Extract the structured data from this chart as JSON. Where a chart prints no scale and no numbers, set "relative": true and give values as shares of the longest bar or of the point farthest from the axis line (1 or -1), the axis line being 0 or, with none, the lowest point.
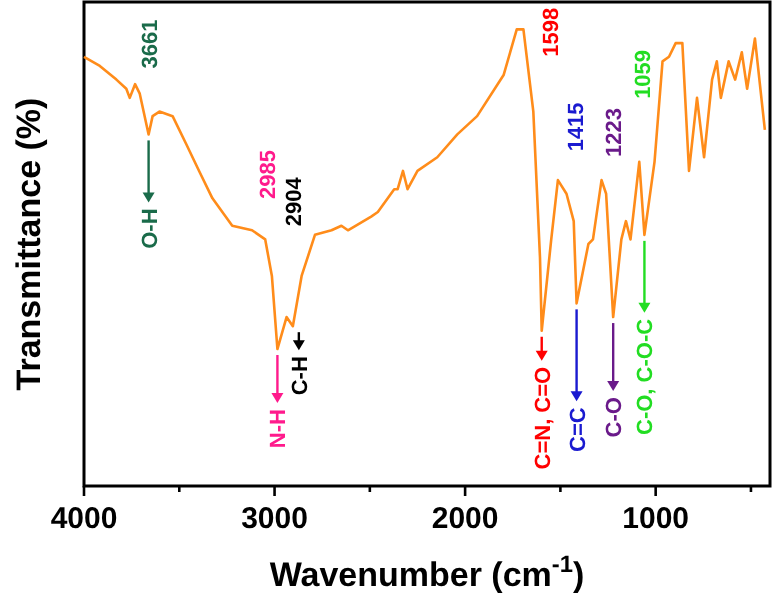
{
  "chart_data": {
    "type": "line",
    "xlabel": "Wavenumber (cm$^{-1}$)",
    "ylabel": "Transmittance (%)",
    "relative": true,
    "xlim": [
      4000,
      400
    ],
    "xticks": [
      4000,
      {
        "value": 3500,
        "label": null
      },
      3000,
      {
        "value": 2500,
        "label": null
      },
      2000,
      {
        "value": 1500,
        "label": null
      },
      1000,
      {
        "value": 500,
        "label": null
      }
    ],
    "marker": "none",
    "grid": false,
    "series": [
      {
        "color": "#ff8c1a",
        "x": [
          4000,
          3917,
          3830,
          3778,
          3760,
          3732,
          3708,
          3661,
          3640,
          3604,
          3535,
          3465,
          3396,
          3326,
          3222,
          3118,
          3049,
          3014,
          2985,
          2937,
          2904,
          2858,
          2788,
          2701,
          2649,
          2615,
          2493,
          2458,
          2372,
          2354,
          2326,
          2302,
          2250,
          2146,
          2041,
          1937,
          1798,
          1729,
          1694,
          1642,
          1607,
          1598,
          1548,
          1513,
          1468,
          1430,
          1415,
          1353,
          1329,
          1284,
          1260,
          1242,
          1223,
          1180,
          1156,
          1132,
          1086,
          1059,
          1006,
          964,
          930,
          895,
          860,
          825,
          783,
          746,
          704,
          679,
          658,
          617,
          583,
          548,
          520,
          479,
          427
        ],
        "values": [
          0.94,
          0.92,
          0.89,
          0.87,
          0.85,
          0.88,
          0.86,
          0.77,
          0.81,
          0.82,
          0.81,
          0.75,
          0.69,
          0.63,
          0.57,
          0.56,
          0.54,
          0.46,
          0.3,
          0.37,
          0.35,
          0.46,
          0.55,
          0.56,
          0.57,
          0.56,
          0.59,
          0.6,
          0.65,
          0.65,
          0.69,
          0.65,
          0.69,
          0.72,
          0.77,
          0.81,
          0.9,
          1.0,
          1.0,
          0.82,
          0.5,
          0.34,
          0.54,
          0.67,
          0.64,
          0.58,
          0.4,
          0.53,
          0.54,
          0.67,
          0.64,
          0.51,
          0.37,
          0.54,
          0.58,
          0.54,
          0.71,
          0.55,
          0.71,
          0.93,
          0.94,
          0.97,
          0.97,
          0.69,
          0.85,
          0.72,
          0.89,
          0.93,
          0.85,
          0.93,
          0.89,
          0.95,
          0.87,
          0.98,
          0.78
        ]
      }
    ],
    "annotations": [
      "3661",
      {
        "text": "O-H",
        "x": 3661,
        "y": 0.77
      },
      "2985",
      {
        "text": "N-H",
        "x": 2985,
        "y": 0.3
      },
      "2904",
      {
        "text": "C-H",
        "x": 2904,
        "y": 0.35
      },
      "1598",
      {
        "text": "C=N, C=O",
        "x": 1598,
        "y": 0.34
      },
      "1415",
      {
        "text": "C=C",
        "x": 1415,
        "y": 0.4
      },
      "1223",
      {
        "text": "C-O",
        "x": 1223,
        "y": 0.37
      },
      "1059",
      {
        "text": "C-O, C-O-C",
        "x": 1059,
        "y": 0.55
      }
    ]
  }
}
